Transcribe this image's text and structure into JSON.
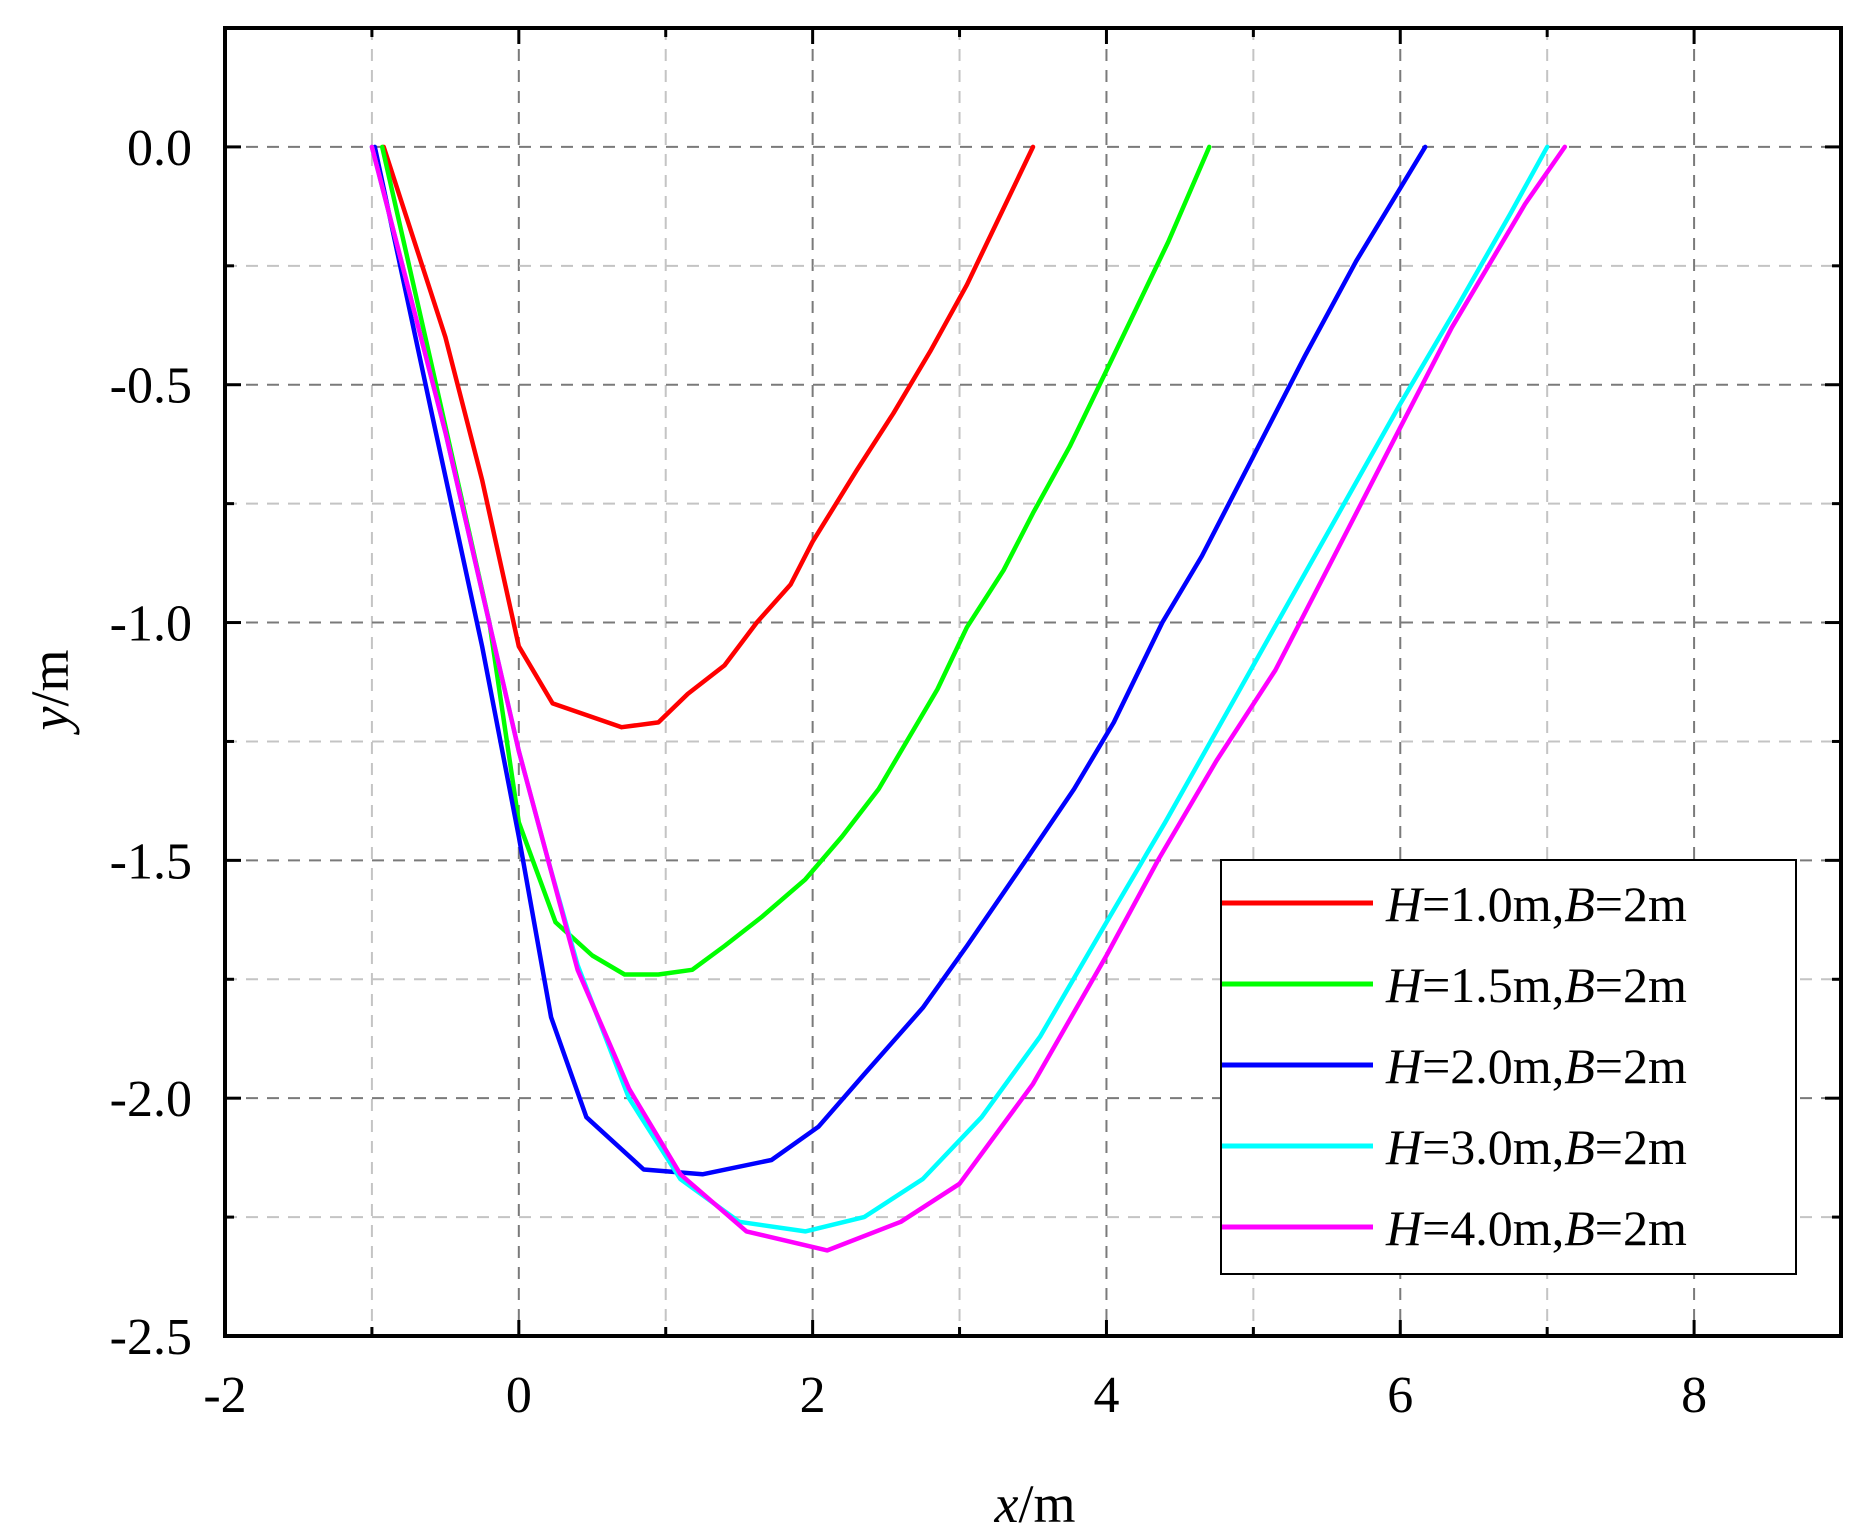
{
  "chart_data": {
    "type": "line",
    "title": "",
    "xlabel": {
      "var": "x",
      "unit": "/m"
    },
    "ylabel": {
      "var": "y",
      "unit": "/m"
    },
    "xlim": [
      -2,
      9
    ],
    "ylim": [
      -2.5,
      0.25
    ],
    "x_ticks": [
      -2,
      0,
      2,
      4,
      6,
      8
    ],
    "x_tick_labels": [
      "-2",
      "0",
      "2",
      "4",
      "6",
      "8"
    ],
    "y_ticks": [
      0.0,
      -0.5,
      -1.0,
      -1.5,
      -2.0,
      -2.5
    ],
    "y_tick_labels": [
      "0.0",
      "-0.5",
      "-1.0",
      "-1.5",
      "-2.0",
      "-2.5"
    ],
    "grid": true,
    "legend_position": "bottom-right",
    "series": [
      {
        "name": "H=1.0m,B=2m",
        "label_parts": {
          "v1": "H",
          "t1": "=1.0m,",
          "v2": "B",
          "t2": "=2m"
        },
        "color": "#ff0000",
        "x": [
          -0.92,
          -0.5,
          -0.25,
          0.0,
          0.23,
          0.7,
          0.95,
          1.15,
          1.4,
          1.62,
          1.85,
          2.0,
          2.3,
          2.55,
          2.8,
          3.05,
          3.5
        ],
        "y": [
          0.0,
          -0.4,
          -0.7,
          -1.05,
          -1.17,
          -1.22,
          -1.21,
          -1.15,
          -1.09,
          -1.0,
          -0.92,
          -0.83,
          -0.68,
          -0.56,
          -0.43,
          -0.29,
          0.0
        ]
      },
      {
        "name": "H=1.5m,B=2m",
        "label_parts": {
          "v1": "H",
          "t1": "=1.5m,",
          "v2": "B",
          "t2": "=2m"
        },
        "color": "#00ff00",
        "x": [
          -0.93,
          -0.6,
          -0.2,
          0.0,
          0.25,
          0.5,
          0.72,
          0.95,
          1.18,
          1.4,
          1.65,
          1.95,
          2.2,
          2.45,
          2.85,
          3.05,
          3.3,
          3.5,
          3.75,
          4.0,
          4.42,
          4.7
        ],
        "y": [
          0.0,
          -0.45,
          -1.0,
          -1.42,
          -1.63,
          -1.7,
          -1.74,
          -1.74,
          -1.73,
          -1.68,
          -1.62,
          -1.54,
          -1.45,
          -1.35,
          -1.14,
          -1.01,
          -0.89,
          -0.77,
          -0.63,
          -0.47,
          -0.2,
          0.0
        ]
      },
      {
        "name": "H=2.0m,B=2m",
        "label_parts": {
          "v1": "H",
          "t1": "=2.0m,",
          "v2": "B",
          "t2": "=2m"
        },
        "color": "#0000ff",
        "x": [
          -0.98,
          -0.6,
          -0.25,
          0.0,
          0.22,
          0.46,
          0.85,
          1.25,
          1.72,
          2.04,
          2.35,
          2.75,
          3.05,
          3.45,
          3.78,
          4.05,
          4.38,
          4.65,
          5.0,
          5.35,
          5.7,
          6.17
        ],
        "y": [
          0.0,
          -0.55,
          -1.05,
          -1.45,
          -1.83,
          -2.04,
          -2.15,
          -2.16,
          -2.13,
          -2.06,
          -1.95,
          -1.81,
          -1.68,
          -1.5,
          -1.35,
          -1.21,
          -1.0,
          -0.86,
          -0.65,
          -0.44,
          -0.24,
          0.0
        ]
      },
      {
        "name": "H=3.0m,B=2m",
        "label_parts": {
          "v1": "H",
          "t1": "=3.0m,",
          "v2": "B",
          "t2": "=2m"
        },
        "color": "#00ffff",
        "x": [
          -1.0,
          -0.5,
          0.0,
          0.2,
          0.4,
          0.75,
          1.1,
          1.5,
          1.95,
          2.35,
          2.75,
          3.15,
          3.55,
          4.0,
          4.4,
          4.8,
          5.2,
          5.6,
          6.0,
          6.4,
          6.75,
          7.0
        ],
        "y": [
          0.0,
          -0.6,
          -1.27,
          -1.5,
          -1.72,
          -2.0,
          -2.17,
          -2.26,
          -2.28,
          -2.25,
          -2.17,
          -2.04,
          -1.87,
          -1.63,
          -1.42,
          -1.2,
          -0.98,
          -0.76,
          -0.54,
          -0.33,
          -0.14,
          0.0
        ]
      },
      {
        "name": "H=4.0m,B=2m",
        "label_parts": {
          "v1": "H",
          "t1": "=4.0m,",
          "v2": "B",
          "t2": "=2m"
        },
        "color": "#ff00ff",
        "x": [
          -1.0,
          -0.5,
          0.0,
          0.2,
          0.4,
          0.75,
          1.1,
          1.55,
          2.1,
          2.6,
          3.0,
          3.5,
          4.0,
          4.35,
          4.75,
          5.15,
          5.55,
          5.95,
          6.35,
          6.85,
          7.12
        ],
        "y": [
          0.0,
          -0.6,
          -1.27,
          -1.5,
          -1.73,
          -1.98,
          -2.16,
          -2.28,
          -2.32,
          -2.26,
          -2.18,
          -1.97,
          -1.7,
          -1.5,
          -1.29,
          -1.1,
          -0.86,
          -0.62,
          -0.38,
          -0.12,
          0.0
        ]
      }
    ]
  }
}
